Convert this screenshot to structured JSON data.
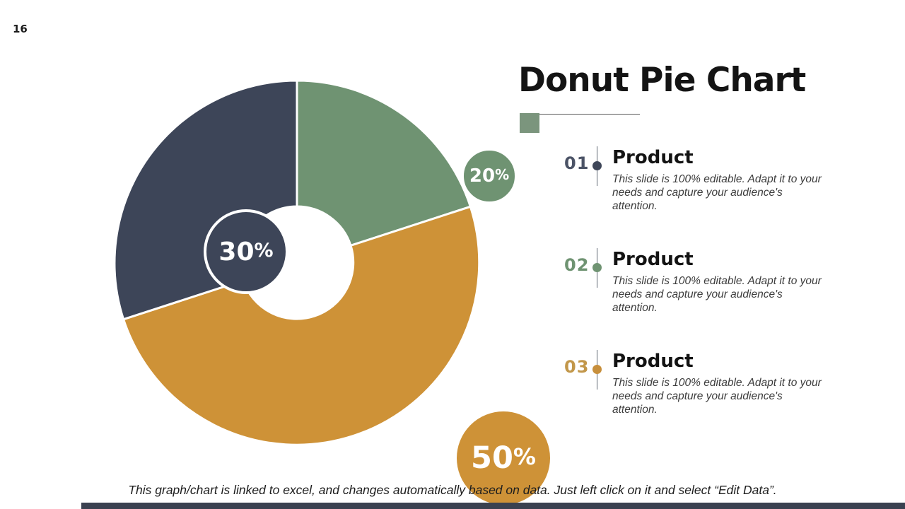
{
  "page_number": "16",
  "title": "Donut Pie Chart",
  "percent_sign": "%",
  "title_accent": {
    "square_color": "#7b957d",
    "line_color": "#5a5a5a"
  },
  "chart_data": {
    "type": "pie",
    "subtype": "donut",
    "title": "Donut Pie Chart",
    "start_angle_deg": 0,
    "direction": "clockwise",
    "inner_radius_ratio": 0.31,
    "slices": [
      {
        "display": "20%",
        "value": 20,
        "color": "#6f9372"
      },
      {
        "display": "50%",
        "value": 50,
        "color": "#ce9237"
      },
      {
        "display": "30%",
        "value": 30,
        "color": "#3d4558"
      }
    ]
  },
  "items": [
    {
      "number": "01",
      "number_color": "#4b5366",
      "dot_color": "#3f4759",
      "heading": "Product",
      "body": "This slide is 100% editable. Adapt it to your needs and capture your audience's attention."
    },
    {
      "number": "02",
      "number_color": "#6f9372",
      "dot_color": "#6f9372",
      "heading": "Product",
      "body": "This slide is 100% editable. Adapt it to your needs and capture your audience's attention."
    },
    {
      "number": "03",
      "number_color": "#c2974a",
      "dot_color": "#c78f3c",
      "heading": "Product",
      "body": "This slide is 100% editable. Adapt it to your needs and capture your audience's attention."
    }
  ],
  "footer": {
    "note": "This graph/chart is linked to excel, and changes automatically based on data. Just left click on it and select “Edit Data”.",
    "bar_color": "#3a4150"
  }
}
